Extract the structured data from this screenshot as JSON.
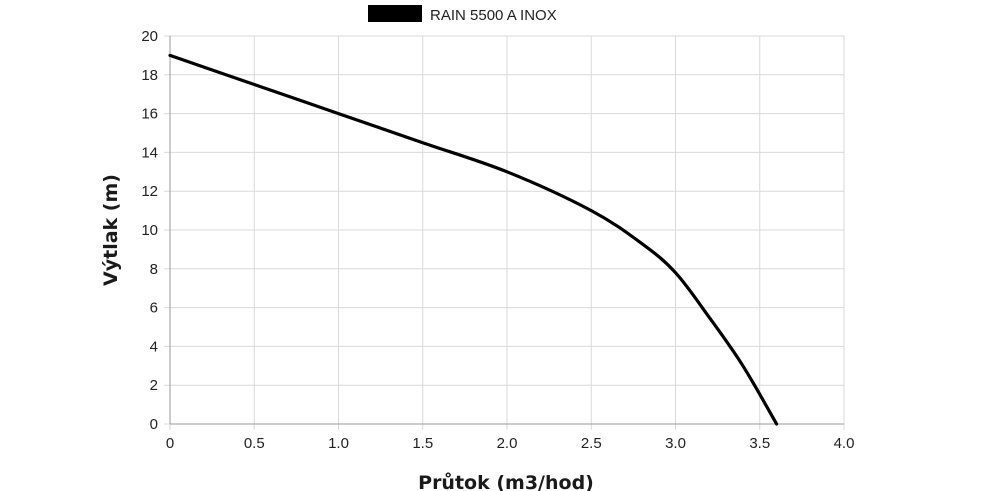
{
  "chart_data": {
    "type": "line",
    "title": "",
    "xlabel": "Průtok (m3/hod)",
    "ylabel": "Výtlak (m)",
    "xlim": [
      0,
      4
    ],
    "ylim": [
      0,
      20
    ],
    "x_ticks": [
      "0",
      "0.5",
      "1.0",
      "1.5",
      "2.0",
      "2.5",
      "3.0",
      "3.5",
      "4.0"
    ],
    "y_ticks": [
      "0",
      "2",
      "4",
      "6",
      "8",
      "10",
      "12",
      "14",
      "16",
      "18",
      "20"
    ],
    "grid": true,
    "legend_position": "top-center",
    "series": [
      {
        "name": "RAIN 5500 A INOX",
        "color": "#000000",
        "x": [
          0,
          0.5,
          1.0,
          1.5,
          2.0,
          2.5,
          2.8,
          3.0,
          3.2,
          3.4,
          3.6
        ],
        "y": [
          19.0,
          17.5,
          16.0,
          14.5,
          13.0,
          11.0,
          9.3,
          7.8,
          5.5,
          3.0,
          0.0
        ]
      }
    ]
  }
}
